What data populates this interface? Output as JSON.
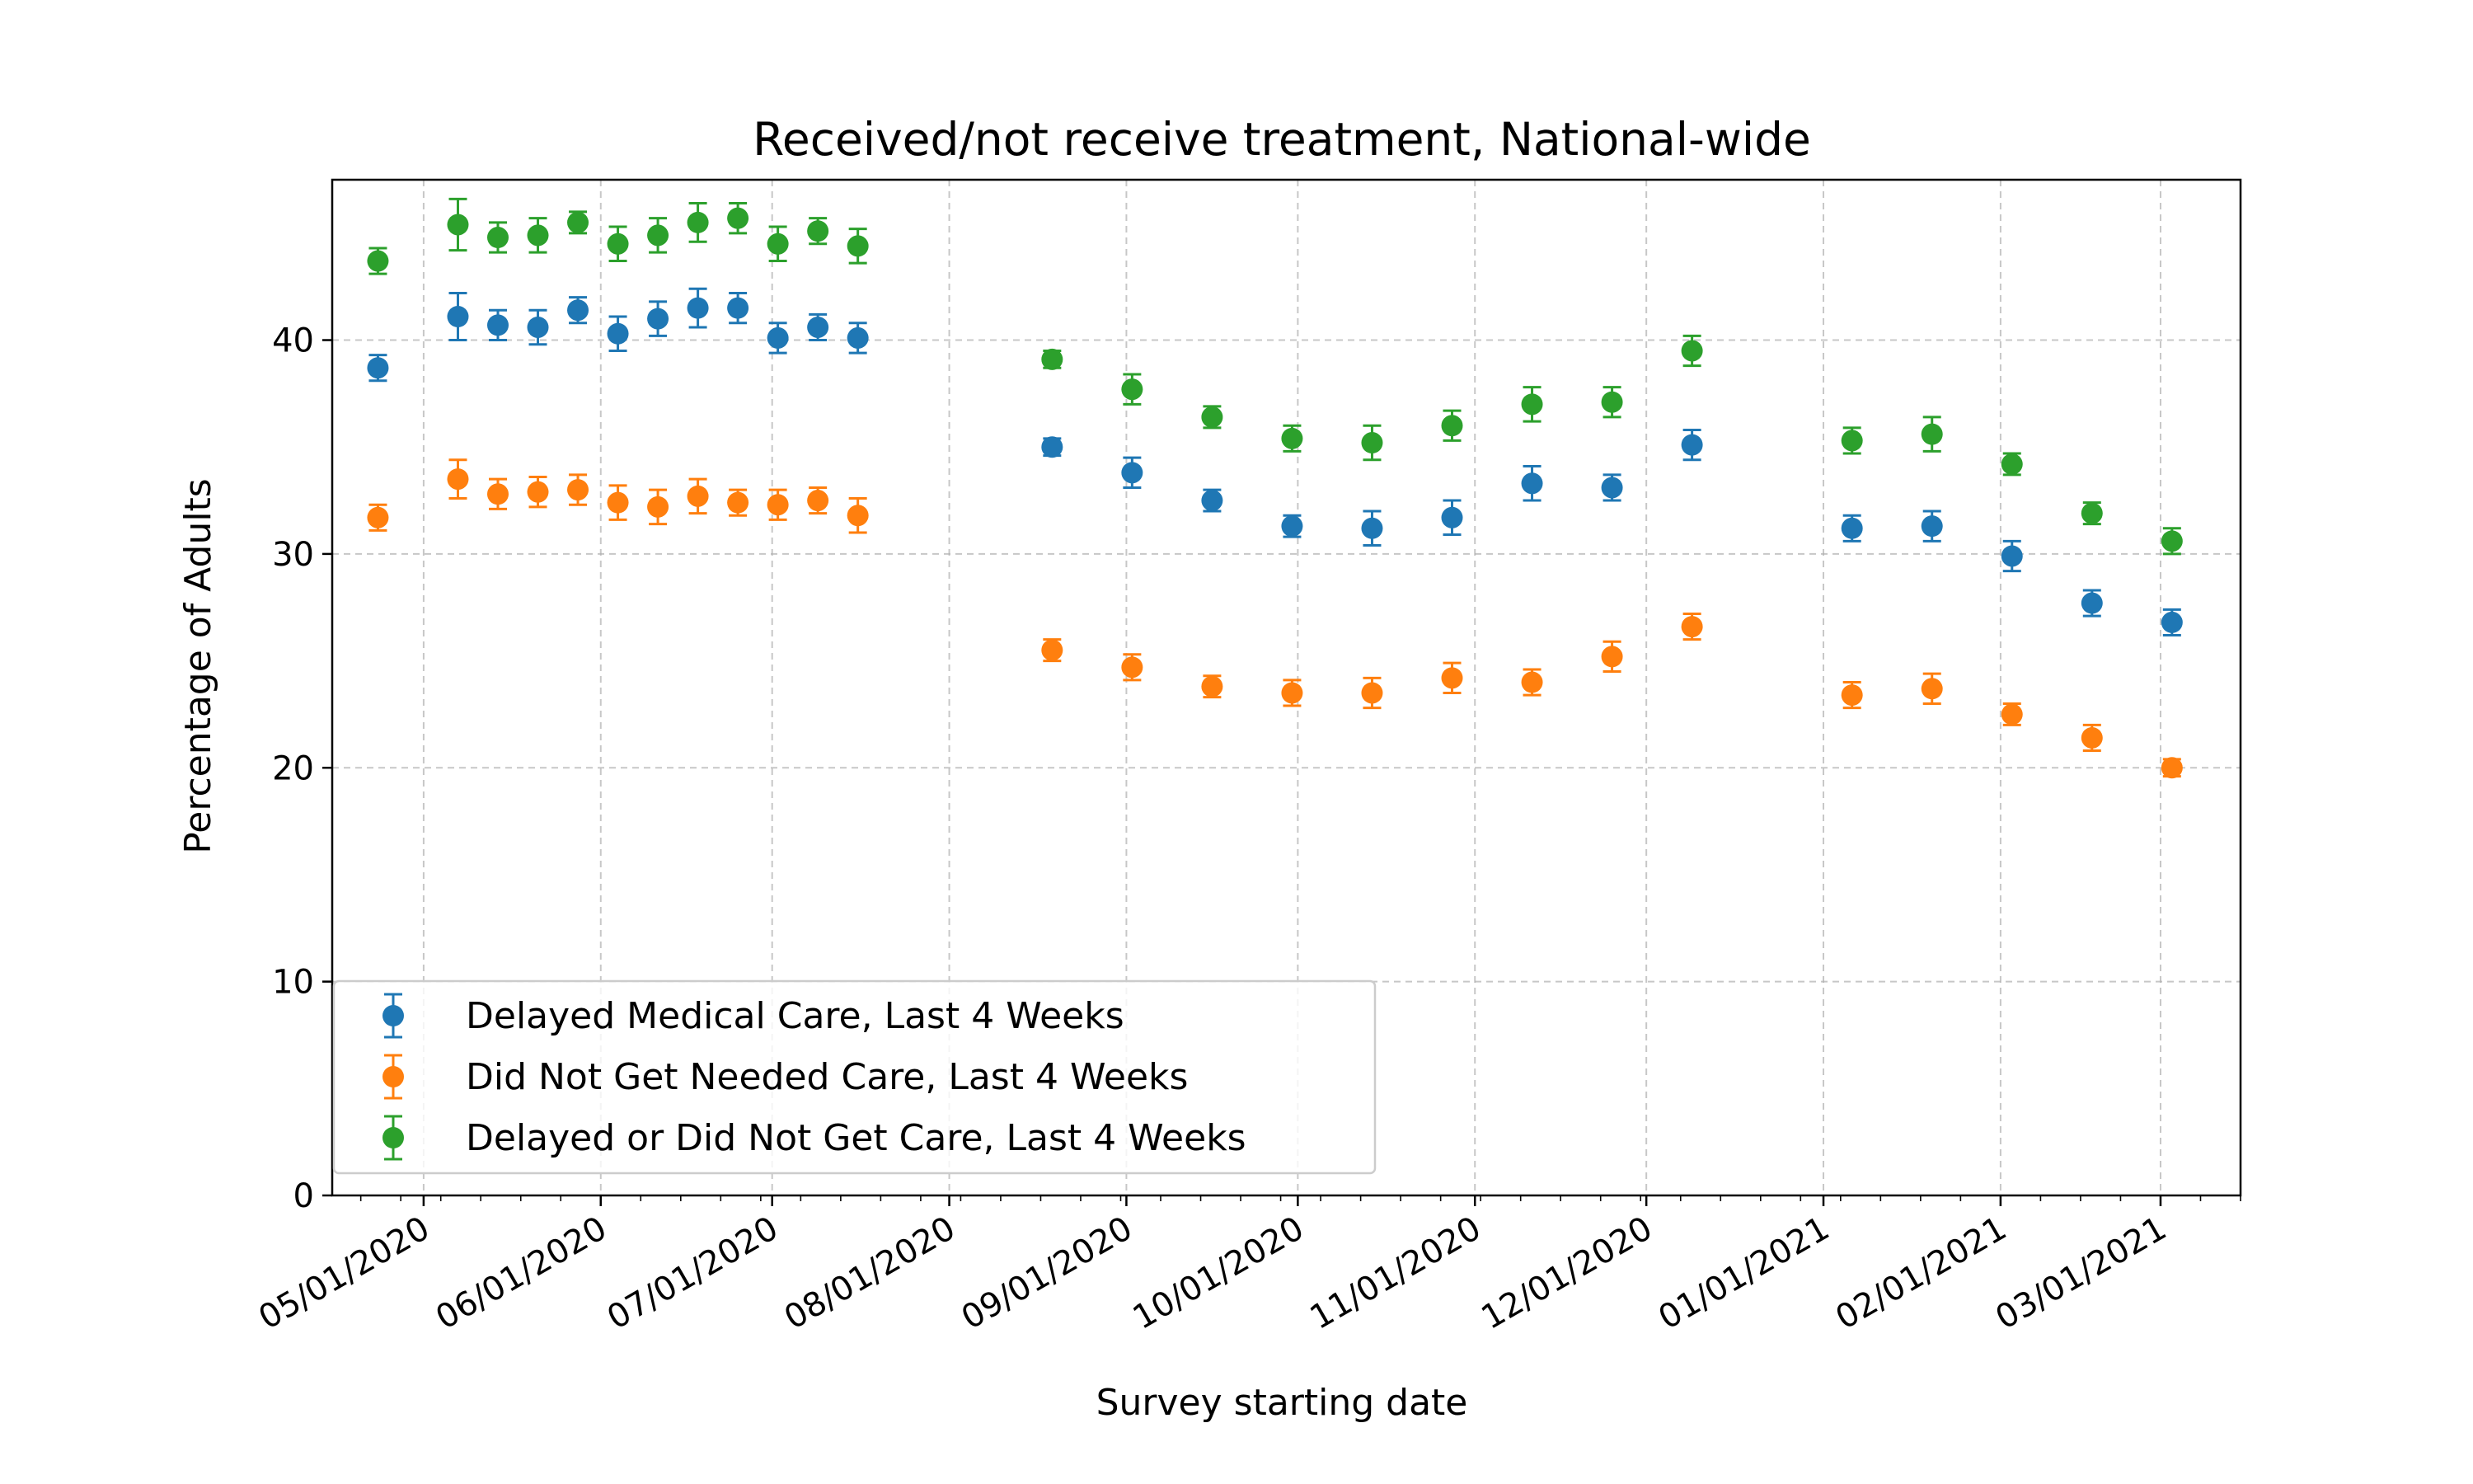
{
  "chart_data": {
    "type": "scatter",
    "title": "Received/not receive treatment, National-wide",
    "xlabel": "Survey starting date",
    "ylabel": "Percentage of Adults",
    "ylim": [
      0,
      47.5
    ],
    "xlim": [
      "2020-04-15",
      "2021-03-15"
    ],
    "yticks": [
      0,
      10,
      20,
      30,
      40
    ],
    "xticks": [
      {
        "date": "2020-05-01",
        "label": "05/01/2020"
      },
      {
        "date": "2020-06-01",
        "label": "06/01/2020"
      },
      {
        "date": "2020-07-01",
        "label": "07/01/2020"
      },
      {
        "date": "2020-08-01",
        "label": "08/01/2020"
      },
      {
        "date": "2020-09-01",
        "label": "09/01/2020"
      },
      {
        "date": "2020-10-01",
        "label": "10/01/2020"
      },
      {
        "date": "2020-11-01",
        "label": "11/01/2020"
      },
      {
        "date": "2020-12-01",
        "label": "12/01/2020"
      },
      {
        "date": "2021-01-01",
        "label": "01/01/2021"
      },
      {
        "date": "2021-02-01",
        "label": "02/01/2021"
      },
      {
        "date": "2021-03-01",
        "label": "03/01/2021"
      }
    ],
    "grid": true,
    "legend_position": "lower left",
    "x": [
      "2020-04-23",
      "2020-05-07",
      "2020-05-14",
      "2020-05-21",
      "2020-05-28",
      "2020-06-04",
      "2020-06-11",
      "2020-06-18",
      "2020-06-25",
      "2020-07-02",
      "2020-07-09",
      "2020-07-16",
      "2020-08-19",
      "2020-09-02",
      "2020-09-16",
      "2020-09-30",
      "2020-10-14",
      "2020-10-28",
      "2020-11-11",
      "2020-11-25",
      "2020-12-09",
      "2021-01-06",
      "2021-01-20",
      "2021-02-03",
      "2021-02-17",
      "2021-03-03"
    ],
    "series": [
      {
        "name": "Delayed Medical Care, Last 4 Weeks",
        "color": "#1f77b4",
        "values": [
          38.7,
          41.1,
          40.7,
          40.6,
          41.4,
          40.3,
          41.0,
          41.5,
          41.5,
          40.1,
          40.6,
          40.1,
          35.0,
          33.8,
          32.5,
          31.3,
          31.2,
          31.7,
          33.3,
          33.1,
          35.1,
          31.2,
          31.3,
          29.9,
          27.7,
          26.8
        ],
        "errors": [
          0.6,
          1.1,
          0.7,
          0.8,
          0.6,
          0.8,
          0.8,
          0.9,
          0.7,
          0.7,
          0.6,
          0.7,
          0.4,
          0.7,
          0.5,
          0.5,
          0.8,
          0.8,
          0.8,
          0.6,
          0.7,
          0.6,
          0.7,
          0.7,
          0.6,
          0.6
        ]
      },
      {
        "name": "Did Not Get Needed Care, Last 4 Weeks",
        "color": "#ff7f0e",
        "values": [
          31.7,
          33.5,
          32.8,
          32.9,
          33.0,
          32.4,
          32.2,
          32.7,
          32.4,
          32.3,
          32.5,
          31.8,
          25.5,
          24.7,
          23.8,
          23.5,
          23.5,
          24.2,
          24.0,
          25.2,
          26.6,
          23.4,
          23.7,
          22.5,
          21.4,
          20.0
        ],
        "errors": [
          0.6,
          0.9,
          0.7,
          0.7,
          0.7,
          0.8,
          0.8,
          0.8,
          0.6,
          0.7,
          0.6,
          0.8,
          0.5,
          0.6,
          0.5,
          0.6,
          0.7,
          0.7,
          0.6,
          0.7,
          0.6,
          0.6,
          0.7,
          0.5,
          0.6,
          0.4
        ]
      },
      {
        "name": "Delayed or Did Not Get Care, Last 4 Weeks",
        "color": "#2ca02c",
        "values": [
          43.7,
          45.4,
          44.8,
          44.9,
          45.5,
          44.5,
          44.9,
          45.5,
          45.7,
          44.5,
          45.1,
          44.4,
          39.1,
          37.7,
          36.4,
          35.4,
          35.2,
          36.0,
          37.0,
          37.1,
          39.5,
          35.3,
          35.6,
          34.2,
          31.9,
          30.6
        ],
        "errors": [
          0.6,
          1.2,
          0.7,
          0.8,
          0.5,
          0.8,
          0.8,
          0.9,
          0.7,
          0.8,
          0.6,
          0.8,
          0.4,
          0.7,
          0.5,
          0.6,
          0.8,
          0.7,
          0.8,
          0.7,
          0.7,
          0.6,
          0.8,
          0.5,
          0.5,
          0.6
        ]
      }
    ]
  }
}
